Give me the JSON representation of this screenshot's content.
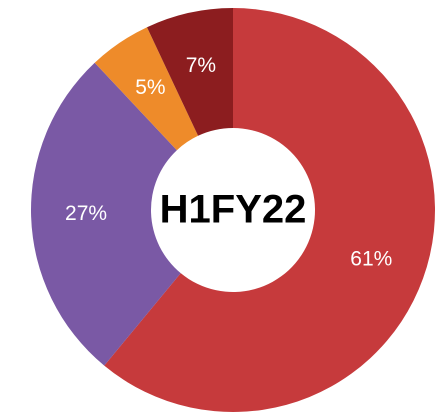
{
  "chart_data": {
    "type": "donut",
    "center_label": "H1FY22",
    "values": [
      61,
      27,
      5,
      7
    ],
    "value_labels": [
      "61%",
      "27%",
      "5%",
      "7%"
    ],
    "colors": [
      "#c63a3c",
      "#7a59a5",
      "#ee8b2a",
      "#8c1d1f"
    ]
  }
}
